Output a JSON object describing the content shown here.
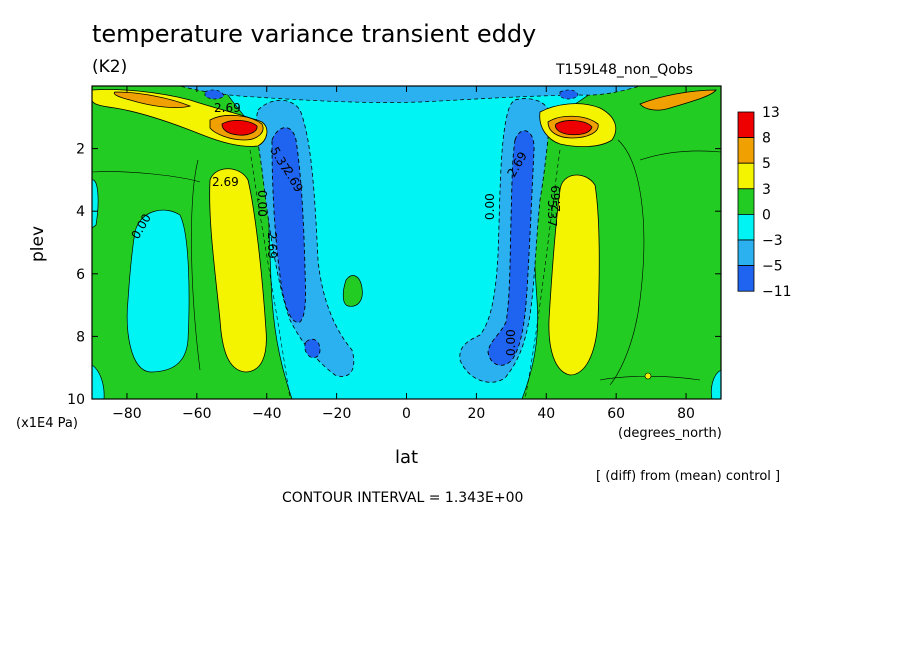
{
  "title": "temperature variance transient eddy",
  "units": "(K2)",
  "run_label": "T159L48_non_Qobs",
  "ylabel": "plev",
  "yunit": "(x1E4 Pa)",
  "xlabel": "lat",
  "xunit": "(degrees_north)",
  "diff_note": "[ (diff) from (mean) control ]",
  "contour_interval": "CONTOUR INTERVAL = 1.343E+00",
  "chart_data": {
    "type": "heatmap",
    "title": "temperature variance transient eddy",
    "xlabel": "lat",
    "ylabel": "plev",
    "xlim": [
      -90,
      90
    ],
    "ylim": [
      10,
      0
    ],
    "x_ticks": [
      -80,
      -60,
      -40,
      -20,
      0,
      20,
      40,
      60,
      80
    ],
    "y_ticks": [
      2,
      4,
      6,
      8,
      10
    ],
    "colorbar": {
      "labels": [
        "13",
        "8",
        "5",
        "3",
        "0",
        "−3",
        "−5",
        "−11"
      ],
      "colors": [
        "#ee0000",
        "#f0a000",
        "#f4f400",
        "#22cc22",
        "#00f4f4",
        "#2bb0f0",
        "#1e64f0"
      ]
    },
    "contour_labels": [
      "2.69",
      "2.69",
      "0.00",
      "5.37",
      "0.00",
      "2.69",
      "2.69",
      "0.00",
      "5.37",
      "2.69",
      "0.00",
      "2.69"
    ],
    "features": [
      {
        "type": "max",
        "lat": -47,
        "plev": 1.5,
        "level": "13"
      },
      {
        "type": "max",
        "lat": 46,
        "plev": 1.5,
        "level": "13"
      },
      {
        "type": "min",
        "lat": -33,
        "plev": 5,
        "level": "-11"
      },
      {
        "type": "min",
        "lat": 32,
        "plev": 5,
        "level": "-11"
      }
    ]
  }
}
